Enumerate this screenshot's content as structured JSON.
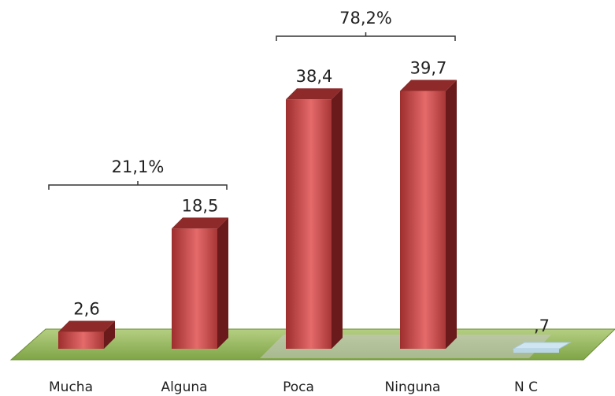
{
  "chart_data": {
    "type": "bar",
    "categories": [
      "Mucha",
      "Alguna",
      "Poca",
      "Ninguna",
      "N C"
    ],
    "values": [
      2.6,
      18.5,
      38.4,
      39.7,
      0.7
    ],
    "value_labels": [
      "2,6",
      "18,5",
      "38,4",
      "39,7",
      ",7"
    ],
    "ylim": [
      0,
      40
    ],
    "grid": false,
    "legend": "none",
    "style": "3d",
    "groups": [
      {
        "label": "21,1%",
        "from": 0,
        "to": 1
      },
      {
        "label": "78,2%",
        "from": 2,
        "to": 3
      }
    ],
    "colors": {
      "bar": "#b33a3a",
      "bar_highlight": "#f07070",
      "bar_side": "#6a1a1a",
      "bar_top": "#8e2a2a",
      "nc_bar": "#cfe6f2",
      "floor": "#9bbf5a",
      "floor_edge": "#6d8f34"
    }
  }
}
